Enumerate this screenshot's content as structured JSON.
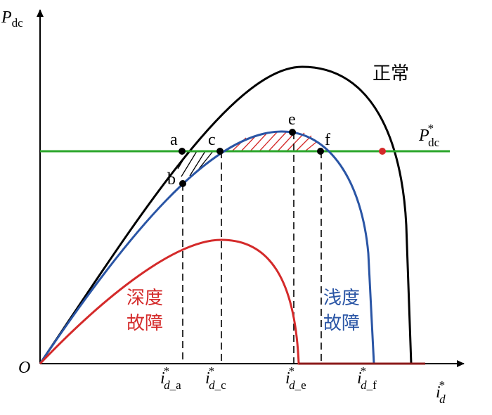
{
  "axes": {
    "y_label": {
      "main": "P",
      "sub": "dc"
    },
    "x_label": {
      "main": "i",
      "sup": "*",
      "sub": "d"
    },
    "origin": "O"
  },
  "curves": {
    "normal": "正常",
    "shallow_fault": [
      "浅度",
      "故障"
    ],
    "deep_fault": [
      "深度",
      "故障"
    ],
    "reference": {
      "main": "P",
      "sup": "*",
      "sub": "dc"
    }
  },
  "points": {
    "a": "a",
    "b": "b",
    "c": "c",
    "e": "e",
    "f": "f"
  },
  "x_ticks": [
    {
      "main": "i",
      "sup": "*",
      "sub_italic": "d",
      "sub": "_a"
    },
    {
      "main": "i",
      "sup": "*",
      "sub_italic": "d",
      "sub": "_c"
    },
    {
      "main": "i",
      "sup": "*",
      "sub_italic": "d",
      "sub": "_e"
    },
    {
      "main": "i",
      "sup": "*",
      "sub_italic": "d",
      "sub": "_f"
    }
  ]
}
